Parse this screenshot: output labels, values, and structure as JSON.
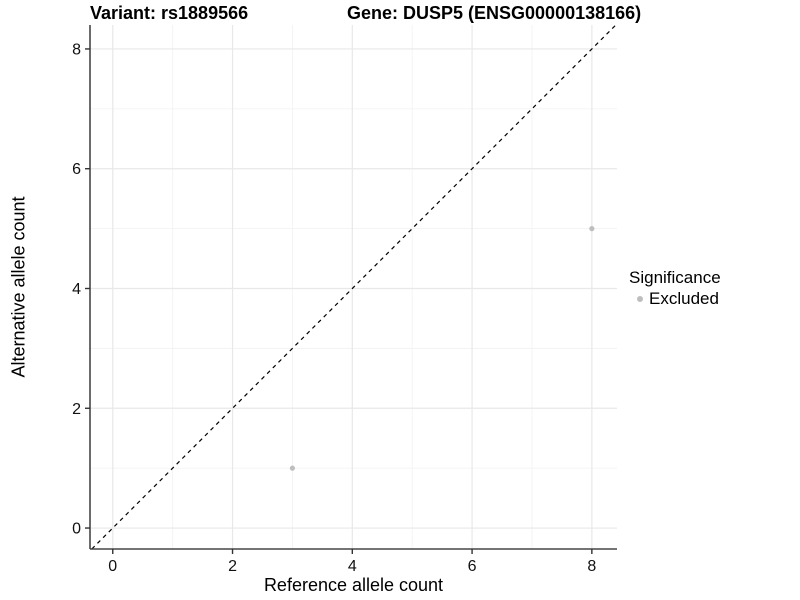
{
  "chart_data": {
    "type": "scatter",
    "titles": {
      "left": "Variant: rs1889566",
      "right": "Gene: DUSP5 (ENSG00000138166)"
    },
    "xlabel": "Reference allele count",
    "ylabel": "Alternative allele count",
    "xlim": [
      -0.38,
      8.42
    ],
    "ylim": [
      -0.35,
      8.4
    ],
    "xticks": [
      0,
      2,
      4,
      6,
      8
    ],
    "yticks": [
      0,
      2,
      4,
      6,
      8
    ],
    "minor_xticks": [
      1,
      3,
      5,
      7
    ],
    "minor_yticks": [
      1,
      3,
      5,
      7
    ],
    "grid": true,
    "series": [
      {
        "name": "Excluded",
        "color": "#bebebe",
        "points": [
          {
            "x": 3,
            "y": 1
          },
          {
            "x": 8,
            "y": 5
          }
        ]
      }
    ],
    "identity_line": {
      "equation": "y = x",
      "style": "dashed",
      "color": "#000000"
    },
    "legend": {
      "title": "Significance",
      "position": "right",
      "items": [
        {
          "label": "Excluded",
          "color": "#bebebe"
        }
      ]
    },
    "colors": {
      "grid_major": "#e8e8e8",
      "grid_minor": "#f3f3f3",
      "axis_line": "#464646",
      "tick_mark": "#333333",
      "tick_label": "#111111",
      "point": "#bebebe"
    }
  }
}
